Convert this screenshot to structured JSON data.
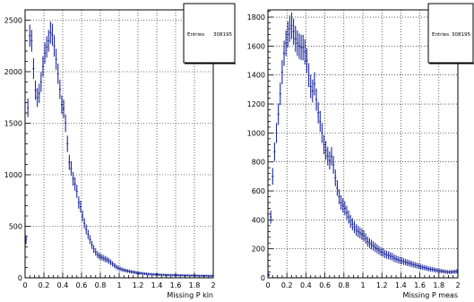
{
  "chart_data": [
    {
      "type": "histogram",
      "xlabel": "Missing P kin",
      "ylabel": "",
      "xlim": [
        0,
        2
      ],
      "ylim": [
        0,
        2600
      ],
      "grid": true,
      "x_ticks": [
        0,
        0.2,
        0.4,
        0.6,
        0.8,
        1,
        1.2,
        1.4,
        1.6,
        1.8,
        2
      ],
      "x_tick_labels": [
        "0",
        "0.2",
        "0.4",
        "0.6",
        "0.8",
        "1",
        "1.2",
        "1.4",
        "1.6",
        "1.8",
        "2"
      ],
      "y_ticks": [
        0,
        500,
        1000,
        1500,
        2000,
        2500
      ],
      "y_tick_labels": [
        "0",
        "500",
        "1000",
        "1500",
        "2000",
        "2500"
      ],
      "stats": {
        "label": "Entries",
        "value": "308195",
        "position": "top-right"
      },
      "color": "#1f2a9e",
      "x": [
        0.01,
        0.03,
        0.05,
        0.07,
        0.09,
        0.11,
        0.13,
        0.15,
        0.17,
        0.19,
        0.21,
        0.23,
        0.25,
        0.27,
        0.29,
        0.31,
        0.33,
        0.35,
        0.37,
        0.39,
        0.41,
        0.43,
        0.45,
        0.47,
        0.49,
        0.51,
        0.53,
        0.55,
        0.57,
        0.59,
        0.61,
        0.63,
        0.65,
        0.67,
        0.69,
        0.71,
        0.73,
        0.75,
        0.77,
        0.79,
        0.81,
        0.83,
        0.85,
        0.87,
        0.89,
        0.91,
        0.93,
        0.95,
        0.97,
        0.99,
        1.01,
        1.03,
        1.05,
        1.07,
        1.09,
        1.11,
        1.13,
        1.15,
        1.17,
        1.19,
        1.21,
        1.23,
        1.25,
        1.27,
        1.29,
        1.31,
        1.33,
        1.35,
        1.37,
        1.39,
        1.41,
        1.43,
        1.45,
        1.47,
        1.49,
        1.51,
        1.53,
        1.55,
        1.57,
        1.59,
        1.61,
        1.63,
        1.65,
        1.67,
        1.69,
        1.71,
        1.73,
        1.75,
        1.77,
        1.79,
        1.81,
        1.83,
        1.85,
        1.87,
        1.89,
        1.91,
        1.93,
        1.95,
        1.97,
        1.99
      ],
      "values": [
        370,
        1650,
        2350,
        2300,
        2030,
        1820,
        1750,
        1790,
        1900,
        2050,
        2180,
        2240,
        2300,
        2380,
        2360,
        2250,
        2120,
        1980,
        1830,
        1680,
        1640,
        1500,
        1300,
        1120,
        1060,
        960,
        910,
        840,
        730,
        690,
        600,
        530,
        470,
        420,
        370,
        320,
        280,
        250,
        225,
        210,
        200,
        192,
        183,
        175,
        165,
        150,
        135,
        120,
        105,
        95,
        88,
        80,
        75,
        70,
        66,
        62,
        58,
        55,
        52,
        49,
        46,
        44,
        42,
        40,
        38,
        36,
        35,
        34,
        33,
        32,
        31,
        30,
        29,
        28,
        28,
        27,
        27,
        26,
        26,
        25,
        25,
        24,
        24,
        24,
        23,
        23,
        23,
        22,
        22,
        22,
        21,
        21,
        21,
        20,
        20,
        20,
        20,
        19,
        19,
        19
      ]
    },
    {
      "type": "histogram",
      "xlabel": "Missing P meas",
      "ylabel": "",
      "xlim": [
        0,
        2
      ],
      "ylim": [
        0,
        1850
      ],
      "grid": true,
      "x_ticks": [
        0,
        0.2,
        0.4,
        0.6,
        0.8,
        1,
        1.2,
        1.4,
        1.6,
        1.8,
        2
      ],
      "x_tick_labels": [
        "0",
        "0.2",
        "0.4",
        "0.6",
        "0.8",
        "1",
        "1.2",
        "1.4",
        "1.6",
        "1.8",
        "2"
      ],
      "y_ticks": [
        0,
        200,
        400,
        600,
        800,
        1000,
        1200,
        1400,
        1600,
        1800
      ],
      "y_tick_labels": [
        "0",
        "200",
        "400",
        "600",
        "800",
        "1000",
        "1200",
        "1400",
        "1600",
        "1800"
      ],
      "stats": {
        "label": "Entries",
        "value": "308195",
        "position": "top-right"
      },
      "color": "#1f2a9e",
      "x": [
        0.01,
        0.03,
        0.05,
        0.07,
        0.09,
        0.11,
        0.13,
        0.15,
        0.17,
        0.19,
        0.21,
        0.23,
        0.25,
        0.27,
        0.29,
        0.31,
        0.33,
        0.35,
        0.37,
        0.39,
        0.41,
        0.43,
        0.45,
        0.47,
        0.49,
        0.51,
        0.53,
        0.55,
        0.57,
        0.59,
        0.61,
        0.63,
        0.65,
        0.67,
        0.69,
        0.71,
        0.73,
        0.75,
        0.77,
        0.79,
        0.81,
        0.83,
        0.85,
        0.87,
        0.89,
        0.91,
        0.93,
        0.95,
        0.97,
        0.99,
        1.01,
        1.03,
        1.05,
        1.07,
        1.09,
        1.11,
        1.13,
        1.15,
        1.17,
        1.19,
        1.21,
        1.23,
        1.25,
        1.27,
        1.29,
        1.31,
        1.33,
        1.35,
        1.37,
        1.39,
        1.41,
        1.43,
        1.45,
        1.47,
        1.49,
        1.51,
        1.53,
        1.55,
        1.57,
        1.59,
        1.61,
        1.63,
        1.65,
        1.67,
        1.69,
        1.71,
        1.73,
        1.75,
        1.77,
        1.79,
        1.81,
        1.83,
        1.85,
        1.87,
        1.89,
        1.91,
        1.93,
        1.95,
        1.97,
        1.99
      ],
      "values": [
        20,
        420,
        700,
        870,
        1000,
        1130,
        1270,
        1420,
        1550,
        1620,
        1680,
        1720,
        1740,
        1700,
        1650,
        1620,
        1600,
        1590,
        1590,
        1560,
        1500,
        1400,
        1320,
        1290,
        1340,
        1230,
        1140,
        1080,
        1000,
        920,
        880,
        840,
        810,
        840,
        780,
        690,
        620,
        560,
        520,
        500,
        480,
        450,
        420,
        390,
        370,
        350,
        330,
        320,
        310,
        300,
        290,
        270,
        250,
        240,
        230,
        220,
        210,
        200,
        190,
        180,
        175,
        165,
        160,
        155,
        150,
        145,
        135,
        130,
        125,
        120,
        118,
        112,
        108,
        104,
        100,
        96,
        92,
        88,
        84,
        80,
        76,
        72,
        70,
        66,
        62,
        60,
        58,
        55,
        52,
        50,
        48,
        46,
        44,
        42,
        40,
        40,
        40,
        41,
        42,
        44
      ]
    }
  ]
}
